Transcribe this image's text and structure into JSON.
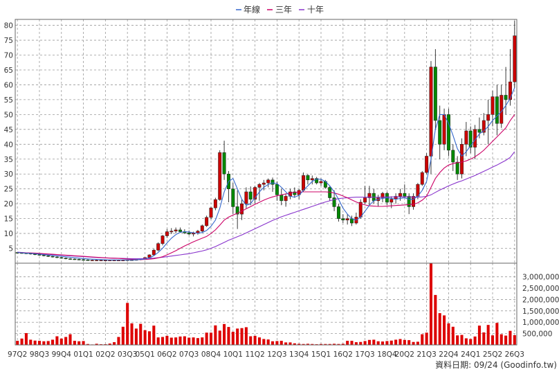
{
  "colors": {
    "up": "#cc0000",
    "down": "#008800",
    "ma_year": "#3366cc",
    "ma_3y": "#cc0066",
    "ma_10y": "#8833cc",
    "volume": "#dd0000",
    "grid": "#999999"
  },
  "legend": [
    "年線",
    "三年",
    "十年"
  ],
  "footer": "資料日期: 09/24 (Goodinfo.tw)",
  "chart_data": {
    "type": "candlestick",
    "price_axis": {
      "min": 0,
      "max": 82,
      "ticks": [
        5,
        10,
        15,
        20,
        25,
        30,
        35,
        40,
        45,
        50,
        55,
        60,
        65,
        70,
        75,
        80
      ],
      "position": "left"
    },
    "volume_axis": {
      "min": 0,
      "max": 3600000,
      "ticks": [
        500000,
        1000000,
        1500000,
        2000000,
        2500000,
        3000000
      ],
      "tick_labels": [
        "500,000",
        "1,000,000",
        "1,500,000",
        "2,000,000",
        "2,500,000",
        "3,000,000"
      ],
      "position": "right"
    },
    "x_axis_labels": [
      "97Q2",
      "98Q3",
      "99Q4",
      "01Q1",
      "02Q2",
      "03Q3",
      "05Q1",
      "06Q2",
      "07Q3",
      "08Q4",
      "10Q1",
      "11Q2",
      "12Q3",
      "13Q4",
      "15Q1",
      "16Q2",
      "17Q3",
      "18Q4",
      "20Q2",
      "21Q3",
      "22Q4",
      "24Q1",
      "25Q2",
      "26Q3"
    ],
    "grid": true,
    "legend_position": "top-center",
    "quarters": 114,
    "candles": [
      [
        3.6,
        3.8,
        3.3,
        3.5
      ],
      [
        3.5,
        3.7,
        3.2,
        3.4
      ],
      [
        3.4,
        3.6,
        3.1,
        3.3
      ],
      [
        3.3,
        3.5,
        2.9,
        3.1
      ],
      [
        3.1,
        3.3,
        2.7,
        2.9
      ],
      [
        2.9,
        3.1,
        2.5,
        2.7
      ],
      [
        2.7,
        2.9,
        2.3,
        2.5
      ],
      [
        2.5,
        2.7,
        2.1,
        2.3
      ],
      [
        2.3,
        2.5,
        1.9,
        2.1
      ],
      [
        2.1,
        2.3,
        1.7,
        1.9
      ],
      [
        1.9,
        2.1,
        1.5,
        1.7
      ],
      [
        1.7,
        1.9,
        1.3,
        1.5
      ],
      [
        1.5,
        1.7,
        1.2,
        1.4
      ],
      [
        1.4,
        1.6,
        1.1,
        1.3
      ],
      [
        1.3,
        1.5,
        1.0,
        1.2
      ],
      [
        1.2,
        1.4,
        0.9,
        1.1
      ],
      [
        1.1,
        1.3,
        0.9,
        1.0
      ],
      [
        1.0,
        1.2,
        0.8,
        1.0
      ],
      [
        1.0,
        1.2,
        0.8,
        1.0
      ],
      [
        1.0,
        1.2,
        0.8,
        1.0
      ],
      [
        1.0,
        1.2,
        0.8,
        1.0
      ],
      [
        1.0,
        1.2,
        0.8,
        1.0
      ],
      [
        1.0,
        1.2,
        0.8,
        1.0
      ],
      [
        1.0,
        1.2,
        0.8,
        1.0
      ],
      [
        1.0,
        1.2,
        0.8,
        1.0
      ],
      [
        1.0,
        1.2,
        0.8,
        1.1
      ],
      [
        1.1,
        1.3,
        0.9,
        1.1
      ],
      [
        1.1,
        1.3,
        0.9,
        1.2
      ],
      [
        1.2,
        1.5,
        1.0,
        1.4
      ],
      [
        1.4,
        2.0,
        1.2,
        1.9
      ],
      [
        1.9,
        3.0,
        1.7,
        2.8
      ],
      [
        2.8,
        4.8,
        2.5,
        4.4
      ],
      [
        4.4,
        7.0,
        4.0,
        6.6
      ],
      [
        6.6,
        9.5,
        6.0,
        9.2
      ],
      [
        9.2,
        11.5,
        8.5,
        10.6
      ],
      [
        10.5,
        11.8,
        9.8,
        10.8
      ],
      [
        10.8,
        12.0,
        10.0,
        11.2
      ],
      [
        11.2,
        12.0,
        10.2,
        10.6
      ],
      [
        10.6,
        11.4,
        9.8,
        10.2
      ],
      [
        10.2,
        11.0,
        9.4,
        9.8
      ],
      [
        9.8,
        10.6,
        9.0,
        10.2
      ],
      [
        10.2,
        11.2,
        9.6,
        10.8
      ],
      [
        10.8,
        13.0,
        10.4,
        12.6
      ],
      [
        12.6,
        16.0,
        12.2,
        15.4
      ],
      [
        15.4,
        19.0,
        14.8,
        18.6
      ],
      [
        18.6,
        22.0,
        17.8,
        21.4
      ],
      [
        21.4,
        38.0,
        21.0,
        37.2
      ],
      [
        37.2,
        41.2,
        28.0,
        30.0
      ],
      [
        30.0,
        31.0,
        20.5,
        25.0
      ],
      [
        25.0,
        27.0,
        16.5,
        19.0
      ],
      [
        19.0,
        24.5,
        11.5,
        16.5
      ],
      [
        16.5,
        21.5,
        14.5,
        20.0
      ],
      [
        20.0,
        25.5,
        18.5,
        24.0
      ],
      [
        24.0,
        25.8,
        19.5,
        21.5
      ],
      [
        21.5,
        26.0,
        20.0,
        25.5
      ],
      [
        25.5,
        27.0,
        21.0,
        26.5
      ],
      [
        26.5,
        28.0,
        24.5,
        27.0
      ],
      [
        27.0,
        28.5,
        25.5,
        28.0
      ],
      [
        28.0,
        28.8,
        24.0,
        26.5
      ],
      [
        26.5,
        27.5,
        21.0,
        23.0
      ],
      [
        23.0,
        25.0,
        19.5,
        21.0
      ],
      [
        21.0,
        23.5,
        19.0,
        22.5
      ],
      [
        22.5,
        25.0,
        21.5,
        24.0
      ],
      [
        24.0,
        25.5,
        22.0,
        23.0
      ],
      [
        23.0,
        25.0,
        21.5,
        24.5
      ],
      [
        24.5,
        30.5,
        24.0,
        29.5
      ],
      [
        29.5,
        30.0,
        26.5,
        28.0
      ],
      [
        28.0,
        29.5,
        26.5,
        28.5
      ],
      [
        28.5,
        29.0,
        26.5,
        27.0
      ],
      [
        27.0,
        28.5,
        26.0,
        27.5
      ],
      [
        27.5,
        28.0,
        25.0,
        25.5
      ],
      [
        25.5,
        26.0,
        21.0,
        22.0
      ],
      [
        22.0,
        24.5,
        17.5,
        19.0
      ],
      [
        19.0,
        20.0,
        14.0,
        15.0
      ],
      [
        15.0,
        16.5,
        13.5,
        14.5
      ],
      [
        14.5,
        16.5,
        13.0,
        15.0
      ],
      [
        15.0,
        16.0,
        12.5,
        13.5
      ],
      [
        13.5,
        17.0,
        13.0,
        15.5
      ],
      [
        15.5,
        21.5,
        15.0,
        20.5
      ],
      [
        20.5,
        26.0,
        20.0,
        22.0
      ],
      [
        22.0,
        26.0,
        19.5,
        23.5
      ],
      [
        23.5,
        25.0,
        20.0,
        21.0
      ],
      [
        21.0,
        23.0,
        19.0,
        22.0
      ],
      [
        22.0,
        24.0,
        20.5,
        23.5
      ],
      [
        23.5,
        24.0,
        19.5,
        20.5
      ],
      [
        20.5,
        22.5,
        18.5,
        21.5
      ],
      [
        21.5,
        23.5,
        20.0,
        22.5
      ],
      [
        22.5,
        25.0,
        21.0,
        23.5
      ],
      [
        23.5,
        26.5,
        22.0,
        22.5
      ],
      [
        22.5,
        23.5,
        16.5,
        19.0
      ],
      [
        19.0,
        23.5,
        18.0,
        22.5
      ],
      [
        22.5,
        27.0,
        21.5,
        26.5
      ],
      [
        26.5,
        31.0,
        26.0,
        30.5
      ],
      [
        30.5,
        37.0,
        30.0,
        36.0
      ],
      [
        36.0,
        68.0,
        30.0,
        66.0
      ],
      [
        66.0,
        72.0,
        45.0,
        48.0
      ],
      [
        48.0,
        53.0,
        35.0,
        40.0
      ],
      [
        40.0,
        52.0,
        38.0,
        50.0
      ],
      [
        50.0,
        52.0,
        36.0,
        38.0
      ],
      [
        38.0,
        40.0,
        31.0,
        34.0
      ],
      [
        34.0,
        36.0,
        28.0,
        30.0
      ],
      [
        30.0,
        42.0,
        28.5,
        40.0
      ],
      [
        40.0,
        47.5,
        36.0,
        44.5
      ],
      [
        44.5,
        46.0,
        37.0,
        39.0
      ],
      [
        39.0,
        46.5,
        35.0,
        45.0
      ],
      [
        45.0,
        49.0,
        42.0,
        44.0
      ],
      [
        44.0,
        50.5,
        43.0,
        48.0
      ],
      [
        48.0,
        55.0,
        40.0,
        50.0
      ],
      [
        50.0,
        58.0,
        46.0,
        56.0
      ],
      [
        56.0,
        60.0,
        43.0,
        47.0
      ],
      [
        47.0,
        60.0,
        45.5,
        56.5
      ],
      [
        56.5,
        66.0,
        50.0,
        55.0
      ],
      [
        55.0,
        72.0,
        53.0,
        61.0
      ],
      [
        61.0,
        81.5,
        59.0,
        76.5
      ]
    ],
    "volume": [
      180000,
      280000,
      520000,
      230000,
      190000,
      180000,
      160000,
      170000,
      230000,
      380000,
      280000,
      350000,
      470000,
      180000,
      160000,
      170000,
      40000,
      20000,
      50000,
      30000,
      30000,
      60000,
      120000,
      350000,
      800000,
      1850000,
      950000,
      720000,
      930000,
      650000,
      600000,
      850000,
      330000,
      350000,
      400000,
      320000,
      330000,
      370000,
      380000,
      320000,
      330000,
      300000,
      330000,
      540000,
      540000,
      860000,
      630000,
      920000,
      790000,
      580000,
      720000,
      740000,
      780000,
      380000,
      400000,
      330000,
      260000,
      240000,
      160000,
      170000,
      180000,
      110000,
      110000,
      70000,
      50000,
      40000,
      50000,
      40000,
      30000,
      40000,
      40000,
      40000,
      50000,
      40000,
      50000,
      180000,
      180000,
      120000,
      130000,
      170000,
      220000,
      230000,
      160000,
      150000,
      170000,
      190000,
      230000,
      260000,
      220000,
      210000,
      130000,
      140000,
      470000,
      540000,
      3600000,
      2200000,
      1400000,
      1300000,
      950000,
      800000,
      420000,
      440000,
      290000,
      260000,
      370000,
      850000,
      550000,
      880000,
      420000,
      970000,
      470000,
      410000,
      620000,
      430000
    ],
    "ma_year": [
      3.6,
      3.5,
      3.4,
      3.3,
      3.2,
      3.05,
      2.9,
      2.75,
      2.6,
      2.45,
      2.3,
      2.15,
      2.0,
      1.85,
      1.7,
      1.55,
      1.45,
      1.35,
      1.25,
      1.2,
      1.15,
      1.1,
      1.1,
      1.1,
      1.1,
      1.1,
      1.1,
      1.15,
      1.25,
      1.4,
      1.8,
      2.5,
      3.6,
      5.0,
      6.8,
      8.4,
      9.6,
      10.4,
      10.6,
      10.5,
      10.2,
      10.1,
      10.3,
      11.0,
      12.4,
      14.5,
      18.5,
      24.0,
      27.5,
      28.5,
      25.0,
      21.5,
      19.5,
      20.0,
      22.0,
      24.0,
      25.5,
      26.5,
      27.0,
      26.8,
      25.5,
      24.0,
      22.5,
      22.2,
      22.8,
      24.5,
      26.0,
      27.5,
      28.3,
      28.2,
      27.5,
      26.0,
      24.0,
      21.5,
      18.5,
      16.5,
      15.0,
      14.5,
      15.5,
      17.5,
      19.5,
      21.0,
      21.5,
      21.8,
      22.0,
      21.8,
      21.5,
      21.8,
      22.0,
      21.5,
      21.5,
      22.5,
      24.5,
      27.5,
      35.0,
      45.0,
      50.0,
      50.0,
      47.0,
      43.0,
      38.5,
      36.0,
      37.5,
      39.5,
      41.5,
      43.5,
      44.5,
      46.0,
      48.0,
      49.5,
      51.0,
      53.0,
      55.5,
      59.0
    ],
    "ma_3y": [
      3.6,
      3.55,
      3.5,
      3.45,
      3.4,
      3.3,
      3.2,
      3.1,
      3.0,
      2.9,
      2.8,
      2.7,
      2.6,
      2.5,
      2.4,
      2.3,
      2.2,
      2.1,
      2.0,
      1.9,
      1.8,
      1.7,
      1.65,
      1.6,
      1.5,
      1.4,
      1.3,
      1.2,
      1.2,
      1.25,
      1.35,
      1.5,
      1.8,
      2.2,
      2.8,
      3.5,
      4.2,
      5.0,
      5.8,
      6.5,
      7.2,
      7.8,
      8.4,
      9.0,
      10.0,
      11.2,
      12.8,
      14.5,
      15.5,
      16.2,
      16.8,
      17.5,
      18.3,
      19.0,
      19.8,
      20.5,
      21.2,
      21.8,
      22.3,
      22.7,
      23.0,
      23.3,
      23.6,
      23.8,
      23.9,
      24.0,
      24.0,
      24.0,
      24.0,
      24.0,
      24.0,
      23.9,
      23.6,
      23.2,
      22.6,
      22.0,
      21.3,
      20.6,
      20.0,
      19.6,
      19.3,
      19.2,
      19.1,
      19.1,
      19.2,
      19.3,
      19.4,
      19.5,
      19.6,
      19.7,
      19.8,
      20.3,
      21.2,
      22.5,
      25.5,
      28.5,
      30.5,
      32.0,
      33.0,
      33.5,
      33.8,
      34.0,
      34.4,
      35.0,
      35.8,
      36.8,
      38.0,
      39.5,
      41.0,
      42.5,
      44.0,
      45.5,
      48.0,
      50.0
    ],
    "ma_10y": [
      3.7,
      3.6,
      3.5,
      3.4,
      3.3,
      3.2,
      3.1,
      3.0,
      2.9,
      2.8,
      2.7,
      2.6,
      2.5,
      2.4,
      2.3,
      2.2,
      2.1,
      2.0,
      1.9,
      1.85,
      1.8,
      1.75,
      1.7,
      1.65,
      1.6,
      1.55,
      1.5,
      1.5,
      1.5,
      1.55,
      1.6,
      1.7,
      1.85,
      2.0,
      2.2,
      2.4,
      2.6,
      2.8,
      3.0,
      3.2,
      3.5,
      3.8,
      4.1,
      4.5,
      5.0,
      5.6,
      6.3,
      7.0,
      7.7,
      8.3,
      8.9,
      9.5,
      10.2,
      10.9,
      11.6,
      12.3,
      13.0,
      13.7,
      14.4,
      15.0,
      15.6,
      16.1,
      16.6,
      17.1,
      17.6,
      18.1,
      18.6,
      19.1,
      19.6,
      20.1,
      20.6,
      21.0,
      21.4,
      21.7,
      21.9,
      22.0,
      22.1,
      22.2,
      22.2,
      22.2,
      22.2,
      22.2,
      22.2,
      22.2,
      22.3,
      22.3,
      22.3,
      22.3,
      22.3,
      22.3,
      22.2,
      22.2,
      22.3,
      22.5,
      23.0,
      23.8,
      24.6,
      25.3,
      26.0,
      26.6,
      27.2,
      27.7,
      28.3,
      28.9,
      29.5,
      30.2,
      30.9,
      31.6,
      32.3,
      33.0,
      33.8,
      34.6,
      35.6,
      37.5
    ]
  }
}
